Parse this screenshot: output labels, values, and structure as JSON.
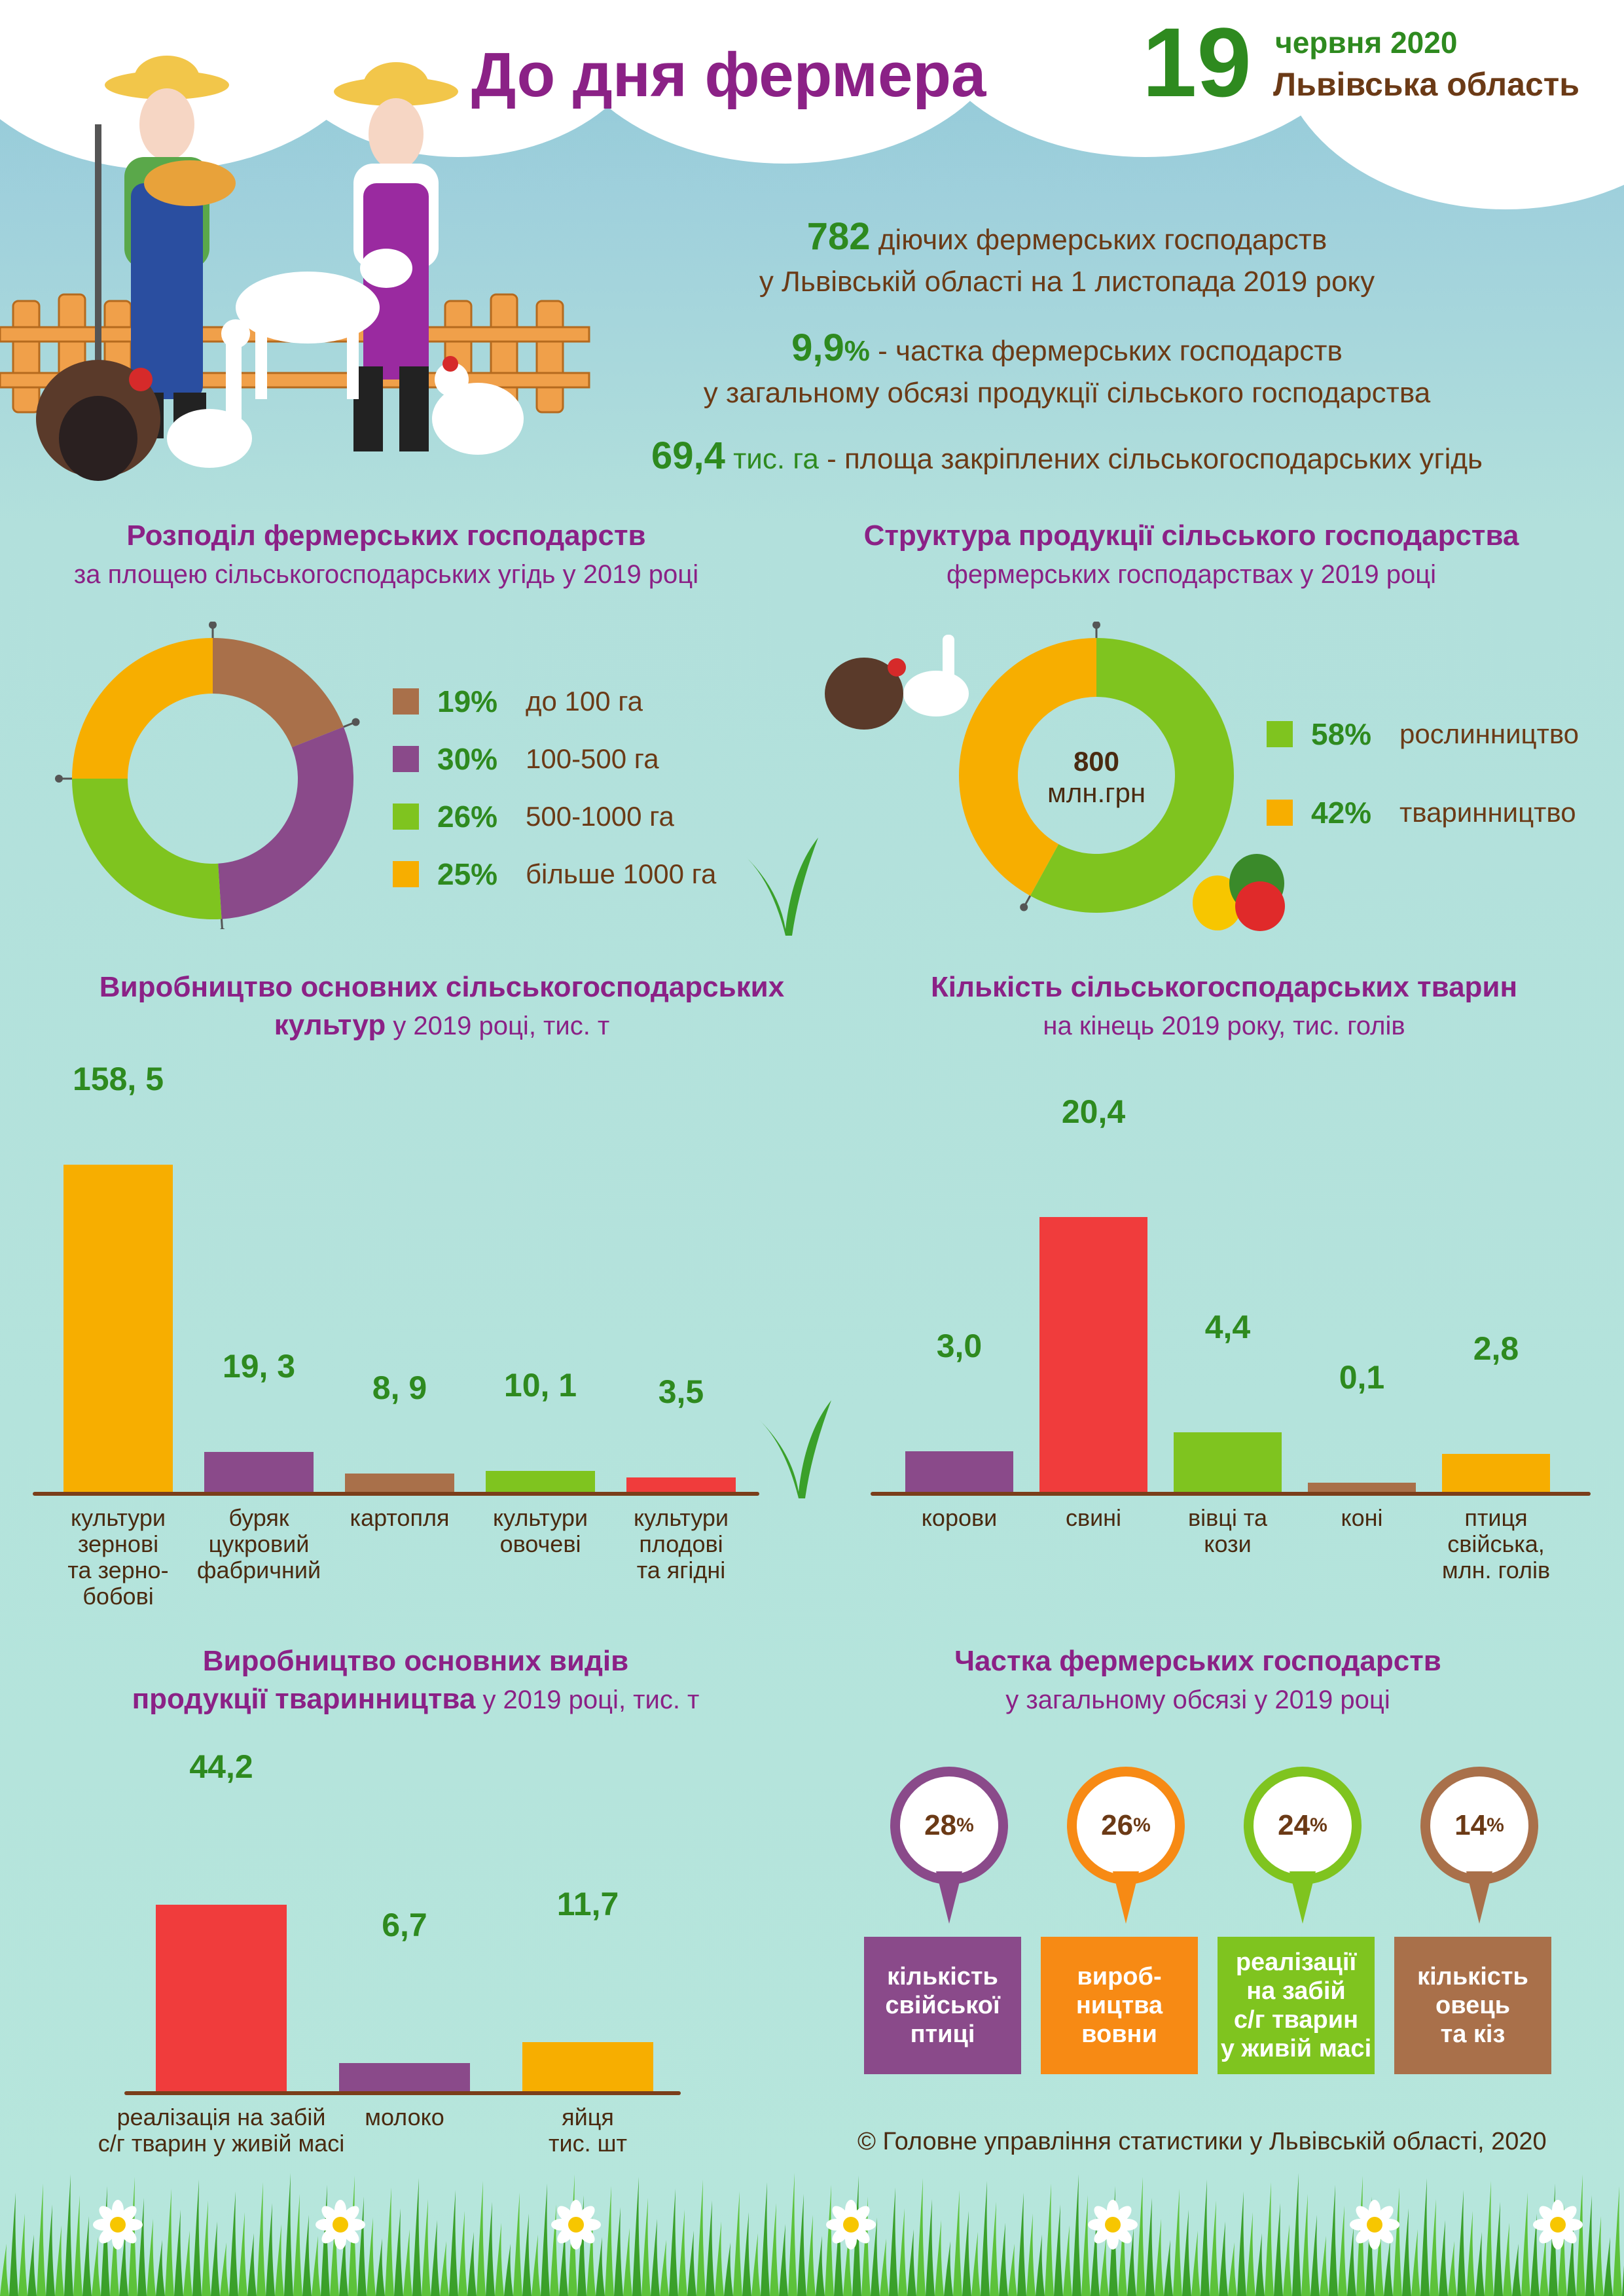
{
  "header": {
    "title": "До дня фермера",
    "date_day": "19",
    "date_month": "червня 2020",
    "region": "Львівська область"
  },
  "stats": [
    {
      "value": "782",
      "text": " діючих фермерських господарств",
      "line2": "у Львівській області на 1 листопада 2019 року"
    },
    {
      "value": "9,9",
      "unit": "%",
      "text": " - частка фермерських господарств",
      "line2": "у загальному обсязі продукції сільського господарства"
    },
    {
      "value": "69,4",
      "unit": " тис. га",
      "text": " - площа закріплених сільськогосподарських угідь"
    }
  ],
  "colors": {
    "brown": "#a9704a",
    "purple": "#8a4a8a",
    "green": "#7fc41f",
    "orange": "#f7ae00",
    "red": "#f03c3c"
  },
  "chart_data": [
    {
      "type": "pie",
      "title": "Розподіл фермерських господарств",
      "subtitle": "за площею сільськогосподарських угідь у 2019 році",
      "slices": [
        {
          "label": "до 100 га",
          "value": 19,
          "pct": "19%",
          "color": "#a9704a"
        },
        {
          "label": "100-500 га",
          "value": 30,
          "pct": "30%",
          "color": "#8a4a8a"
        },
        {
          "label": "500-1000 га",
          "value": 26,
          "pct": "26%",
          "color": "#7fc41f"
        },
        {
          "label": "більше 1000 га",
          "value": 25,
          "pct": "25%",
          "color": "#f7ae00"
        }
      ]
    },
    {
      "type": "pie",
      "title": "Структура продукції сільського господарства",
      "subtitle": "фермерських господарствах у 2019 році",
      "center_value": "800",
      "center_unit": "млн.грн",
      "slices": [
        {
          "label": "рослинництво",
          "value": 58,
          "pct": "58%",
          "color": "#7fc41f"
        },
        {
          "label": "тваринництво",
          "value": 42,
          "pct": "42%",
          "color": "#f7ae00"
        }
      ]
    },
    {
      "type": "bar",
      "title": "Виробництво основних сільськогосподарських",
      "title2": "культур",
      "subtitle": " у 2019 році, тис. т",
      "categories": [
        "культури зернові та зерно-бобові",
        "буряк цукровий фабричний",
        "картопля",
        "культури овочеві",
        "культури плодові та ягідні"
      ],
      "category_lines": [
        [
          "культури",
          "зернові",
          "та зерно-",
          "бобові"
        ],
        [
          "буряк",
          "цукровий",
          "фабричний"
        ],
        [
          "картопля"
        ],
        [
          "культури",
          "овочеві"
        ],
        [
          "культури",
          "плодові",
          "та ягідні"
        ]
      ],
      "values": [
        158.5,
        19.3,
        8.9,
        10.1,
        3.5
      ],
      "labels": [
        "158, 5",
        "19, 3",
        "8, 9",
        "10, 1",
        "3,5"
      ],
      "colors": [
        "#f7ae00",
        "#8a4a8a",
        "#a9704a",
        "#7fc41f",
        "#f03c3c"
      ]
    },
    {
      "type": "bar",
      "title": "Кількість сільськогосподарських тварин",
      "subtitle": "на кінець 2019 року, тис. голів",
      "categories": [
        "корови",
        "свині",
        "вівці та кози",
        "коні",
        "птиця свійська, млн. голів"
      ],
      "category_lines": [
        [
          "корови"
        ],
        [
          "свині"
        ],
        [
          "вівці та",
          "кози"
        ],
        [
          "коні"
        ],
        [
          "птиця",
          "свійська,",
          "млн. голів"
        ]
      ],
      "values": [
        3.0,
        20.4,
        4.4,
        0.1,
        2.8
      ],
      "labels": [
        "3,0",
        "20,4",
        "4,4",
        "0,1",
        "2,8"
      ],
      "colors": [
        "#8a4a8a",
        "#f03c3c",
        "#7fc41f",
        "#a9704a",
        "#f7ae00"
      ]
    },
    {
      "type": "bar",
      "title": "Виробництво основних видів",
      "title2": "продукції тваринництва",
      "subtitle": " у 2019 році, тис. т",
      "categories": [
        "реалізація на забій с/г тварин у живій масі",
        "молоко",
        "яйця тис. шт"
      ],
      "category_lines": [
        [
          "реалізація на забій",
          "с/г тварин у живій масі"
        ],
        [
          "молоко"
        ],
        [
          "яйця",
          "тис. шт"
        ]
      ],
      "values": [
        44.2,
        6.7,
        11.7
      ],
      "labels": [
        "44,2",
        "6,7",
        "11,7"
      ],
      "colors": [
        "#f03c3c",
        "#8a4a8a",
        "#f7ae00"
      ]
    }
  ],
  "shares": {
    "title": "Частка фермерських господарств",
    "subtitle": "у загальному обсязі у 2019 році",
    "items": [
      {
        "pct": "28",
        "sign": "%",
        "lines": [
          "кількість",
          "свійської",
          "птиці"
        ],
        "color": "#8a4a8a"
      },
      {
        "pct": "26",
        "sign": "%",
        "lines": [
          "вироб-",
          "ництва",
          "вовни"
        ],
        "color": "#f78a14"
      },
      {
        "pct": "24",
        "sign": "%",
        "lines": [
          "реалізації",
          "на забій",
          "с/г тварин",
          "у живій масі"
        ],
        "color": "#7fc41f"
      },
      {
        "pct": "14",
        "sign": "%",
        "lines": [
          "кількість",
          "овець",
          "та кіз"
        ],
        "color": "#a9704a"
      }
    ]
  },
  "copyright": "©  Головне управління статистики у Львівській області, 2020"
}
